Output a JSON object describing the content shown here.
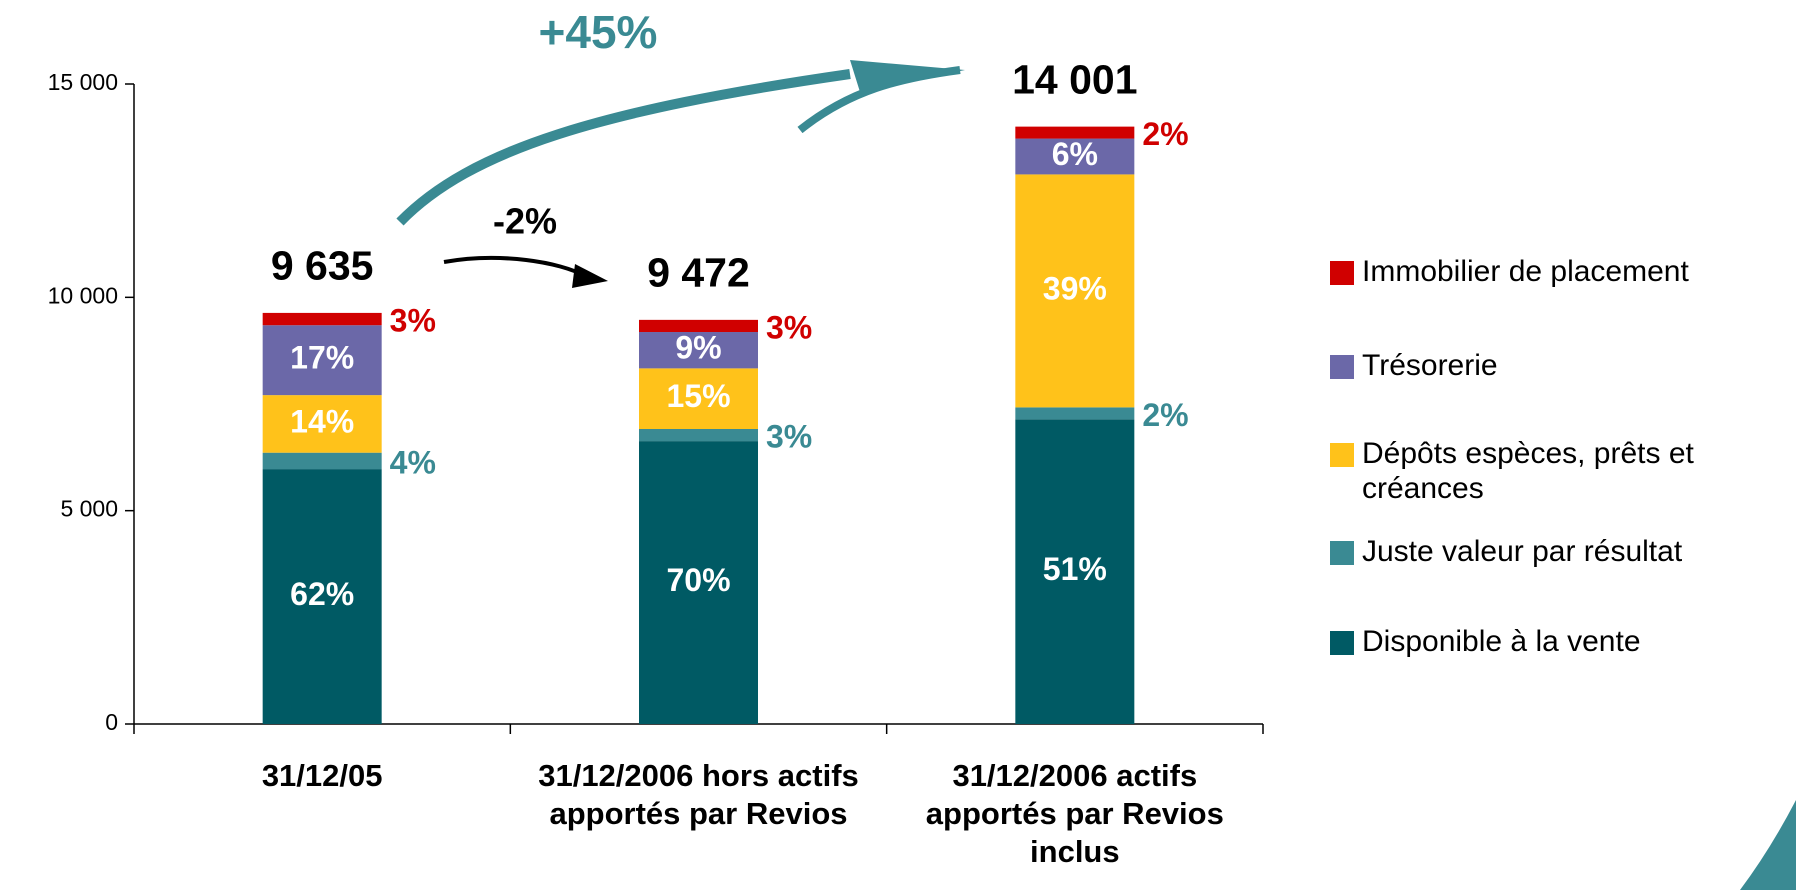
{
  "chart_data": {
    "type": "stacked_bar",
    "categories": [
      "31/12/05",
      "31/12/2006 hors actifs apportés par Revios",
      "31/12/2006 actifs apportés par Revios inclus"
    ],
    "series": [
      {
        "name": "Disponible à la vente",
        "color": "#005a64",
        "values": [
          5974,
          6630,
          7141
        ],
        "value_labels": [
          "62%",
          "70%",
          "51%"
        ]
      },
      {
        "name": "Juste valeur par résultat",
        "color": "#3a8a93",
        "values": [
          385,
          284,
          280
        ],
        "value_labels": [
          "4%",
          "3%",
          "2%"
        ]
      },
      {
        "name": "Dépôts espèces, prêts et créances",
        "color": "#ffc21a",
        "values": [
          1349,
          1421,
          5460
        ],
        "value_labels": [
          "14%",
          "15%",
          "39%"
        ]
      },
      {
        "name": "Trésorerie",
        "color": "#6b68a8",
        "values": [
          1638,
          852,
          840
        ],
        "value_labels": [
          "17%",
          "9%",
          "6%"
        ]
      },
      {
        "name": "Immobilier de placement",
        "color": "#d00000",
        "values": [
          289,
          285,
          280
        ],
        "value_labels": [
          "3%",
          "3%",
          "2%"
        ]
      }
    ],
    "totals": [
      9635,
      9472,
      14001
    ],
    "total_labels": [
      "9 635",
      "9 472",
      "14 001"
    ],
    "annotations": [
      "+45%",
      "-2%"
    ],
    "ylim": [
      0,
      15000
    ],
    "yticks": [
      0,
      {
        "value": 5000,
        "label": "5 000"
      },
      {
        "value": 10000,
        "label": "10 000"
      },
      {
        "value": 15000,
        "label": "15 000"
      }
    ],
    "legend": "right"
  }
}
